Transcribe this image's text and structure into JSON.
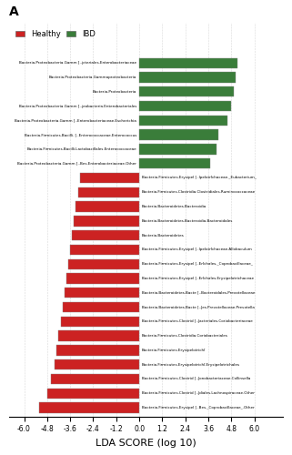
{
  "chart_data": {
    "type": "bar",
    "orientation": "horizontal",
    "title": "A",
    "xlabel": "LDA SCORE (log 10)",
    "xlim": [
      -6.8,
      7.5
    ],
    "xticks": [
      -6.0,
      -4.8,
      -3.6,
      -2.4,
      -1.2,
      0.0,
      1.2,
      2.4,
      3.6,
      4.8,
      6.0
    ],
    "grid": true,
    "legend": "upper left",
    "categories": [
      "Bacteria.Proteobacteria.Gamm [..jcteriales.Enterobacteriaceae",
      "Bacteria.Proteobacteria.Gammaproteobacteria",
      "Bacteria.Proteobacteria",
      "Bacteria.Proteobacteria.Gamm [..jeobacteria.Enterobacteriales",
      "Bacteria.Proteobacteria.Gamm [..Enterobacteriaceae.Escherichia",
      "Bacteria.Firmicutes.Bacilli. [..Enterococcaceae.Enterococcus",
      "Bacteria.Firmicutes.Bacilli.Lactobacillales.Enterococcaceae",
      "Bacteria.Proteobacteria.Gamm [..Bes.Enterobacteriaceae.Other",
      "Bacteria.Firmicutes.Erysipel [..Ipelotrîchaceae._Eubacterium_",
      "Bacteria.Firmicutes.Clostridia.Clostridiales.Ruminococcaceae",
      "Bacteria.Bacteroidetes.Bacteroidia",
      "Bacteria.Bacteroidetes.Bacteroidia.Bacteroidales",
      "Bacteria.Bacteroidetes",
      "Bacteria.Firmicutes.Erysipel [..Ipelotrîchaceae.Allobaculum",
      "Bacteria.Firmicutes.Erysipel [..Erîchales._Coprobacillaceae_",
      "Bacteria.Firmicutes.Erysipel [..Erîchales.Erysipelotrichaceae",
      "Bacteria.Bacteroidetes.Bacte [..Bacteroidales.Prevotellaceae",
      "Bacteria.Bacteroidetes.Bacte [..Jes.Prevotellaceae.Prevotella",
      "Bacteria.Firmicutes.Clostrid [..Jacteriales.Coriobacteriaceae",
      "Bacteria.Firmicutes.Clostridia.Coriobacteriales",
      "Bacteria.Firmicutes.Erysipelotrichî",
      "Bacteria.Firmicutes.Erysipelotrichî.Erysipelotrichales",
      "Bacteria.Firmicutes.Clostrid [..Jonobacteriaceae.Collinsella",
      "Bacteria.Firmicutes.Clostrid [..Jdiales.Lachnospiraceae.Other",
      "Bacteria.Firmicutes.Erysipel [..Bes._Coprobacillaceae_.Other"
    ],
    "series": [
      {
        "name": "Healthy",
        "color": "#cc2222",
        "values": [
          null,
          null,
          null,
          null,
          null,
          null,
          null,
          null,
          -3.1,
          -3.2,
          -3.3,
          -3.4,
          -3.5,
          -3.6,
          -3.7,
          -3.8,
          -3.9,
          -4.0,
          -4.1,
          -4.2,
          -4.3,
          -4.4,
          -4.6,
          -4.8,
          -5.2
        ]
      },
      {
        "name": "IBD",
        "color": "#3a7d3a",
        "values": [
          5.1,
          5.0,
          4.9,
          4.8,
          4.6,
          4.1,
          4.0,
          3.7,
          null,
          null,
          null,
          null,
          null,
          null,
          null,
          null,
          null,
          null,
          null,
          null,
          null,
          null,
          null,
          null,
          null
        ]
      }
    ]
  }
}
